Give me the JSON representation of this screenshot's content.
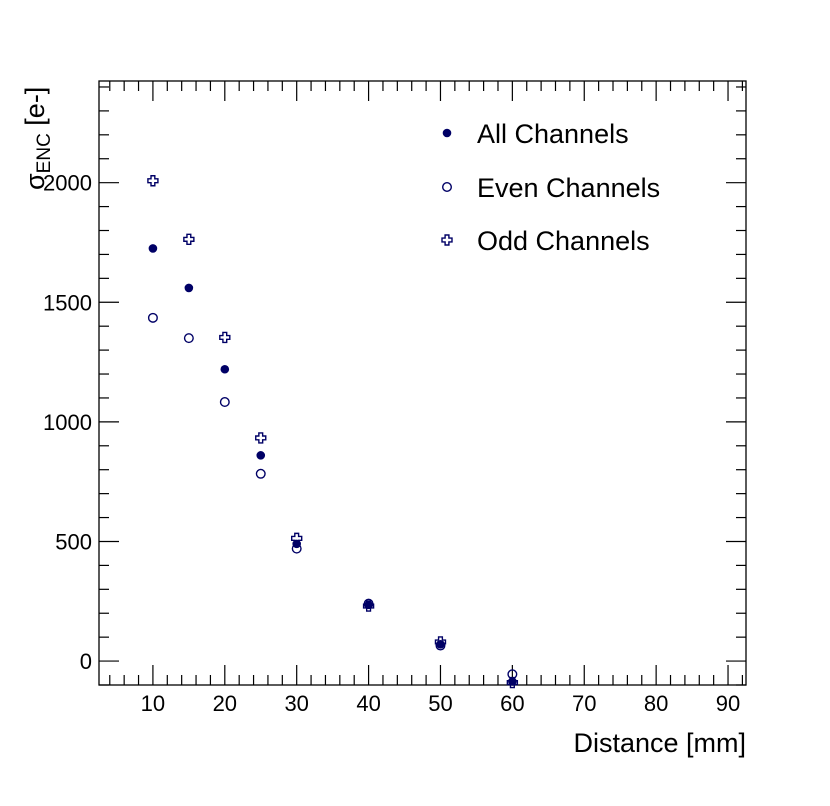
{
  "chart_data": {
    "type": "scatter",
    "xlabel": "Distance [mm]",
    "ylabel": {
      "main": "σ",
      "sub": "ENC",
      "unit": " [e-]"
    },
    "xlim": [
      2.5,
      92.5
    ],
    "ylim": [
      -100,
      2425
    ],
    "x_ticks": [
      10,
      20,
      30,
      40,
      50,
      60,
      70,
      80,
      90
    ],
    "y_ticks": [
      0,
      500,
      1000,
      1500,
      2000
    ],
    "grid": false,
    "legend_position": "top-right",
    "color": "#000066",
    "series": [
      {
        "name": "All Channels",
        "marker": "filled-circle",
        "x": [
          10,
          15,
          20,
          25,
          30,
          40,
          50,
          60
        ],
        "y": [
          1725,
          1560,
          1220,
          860,
          490,
          235,
          70,
          -85
        ]
      },
      {
        "name": "Even Channels",
        "marker": "open-circle",
        "x": [
          10,
          15,
          20,
          25,
          30,
          40,
          50,
          60
        ],
        "y": [
          1435,
          1350,
          1083,
          783,
          470,
          240,
          65,
          -55
        ]
      },
      {
        "name": "Odd Channels",
        "marker": "open-cross",
        "x": [
          10,
          15,
          20,
          25,
          30,
          40,
          50,
          60
        ],
        "y": [
          2008,
          1763,
          1353,
          933,
          513,
          230,
          80,
          -90
        ]
      }
    ]
  }
}
